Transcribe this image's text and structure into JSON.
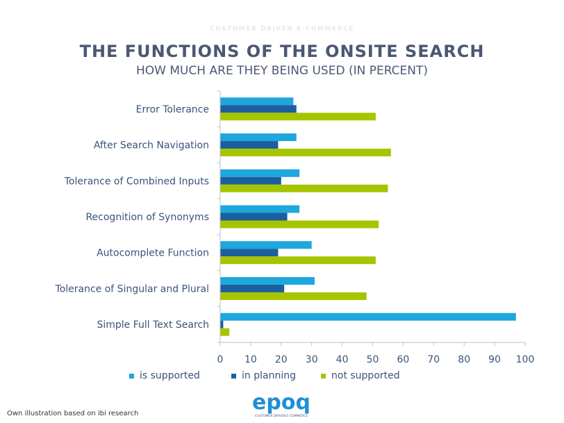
{
  "header": {
    "kicker": "CUSTOMER DRIVEN E-COMMERCE",
    "title": "THE FUNCTIONS OF THE ONSITE SEARCH",
    "subtitle": "HOW MUCH ARE THEY BEING USED (IN PERCENT)"
  },
  "chart_data": {
    "type": "bar",
    "orientation": "horizontal",
    "categories": [
      "Error Tolerance",
      "After Search Navigation",
      "Tolerance of Combined Inputs",
      "Recognition of Synonyms",
      "Autocomplete Function",
      "Tolerance of Singular and Plural",
      "Simple Full Text Search"
    ],
    "series": [
      {
        "name": "is supported",
        "color": "#1ea7dc",
        "values": [
          24,
          25,
          26,
          26,
          30,
          31,
          97
        ]
      },
      {
        "name": "in planning",
        "color": "#1c5f9e",
        "values": [
          25,
          19,
          20,
          22,
          19,
          21,
          1
        ]
      },
      {
        "name": "not supported",
        "color": "#a7c400",
        "values": [
          51,
          56,
          55,
          52,
          51,
          48,
          3
        ]
      }
    ],
    "xlim": [
      0,
      100
    ],
    "xticks": [
      0,
      10,
      20,
      30,
      40,
      50,
      60,
      70,
      80,
      90,
      100
    ],
    "grid": false,
    "legend_position": "bottom",
    "title": "THE FUNCTIONS OF THE ONSITE SEARCH",
    "subtitle": "HOW MUCH ARE THEY BEING USED (IN PERCENT)"
  },
  "footer": {
    "source": "Own illustration based on ibi research",
    "logo_text": "epoq",
    "logo_tagline": "CUSTOMER DRIVEN E-COMMERCE"
  }
}
